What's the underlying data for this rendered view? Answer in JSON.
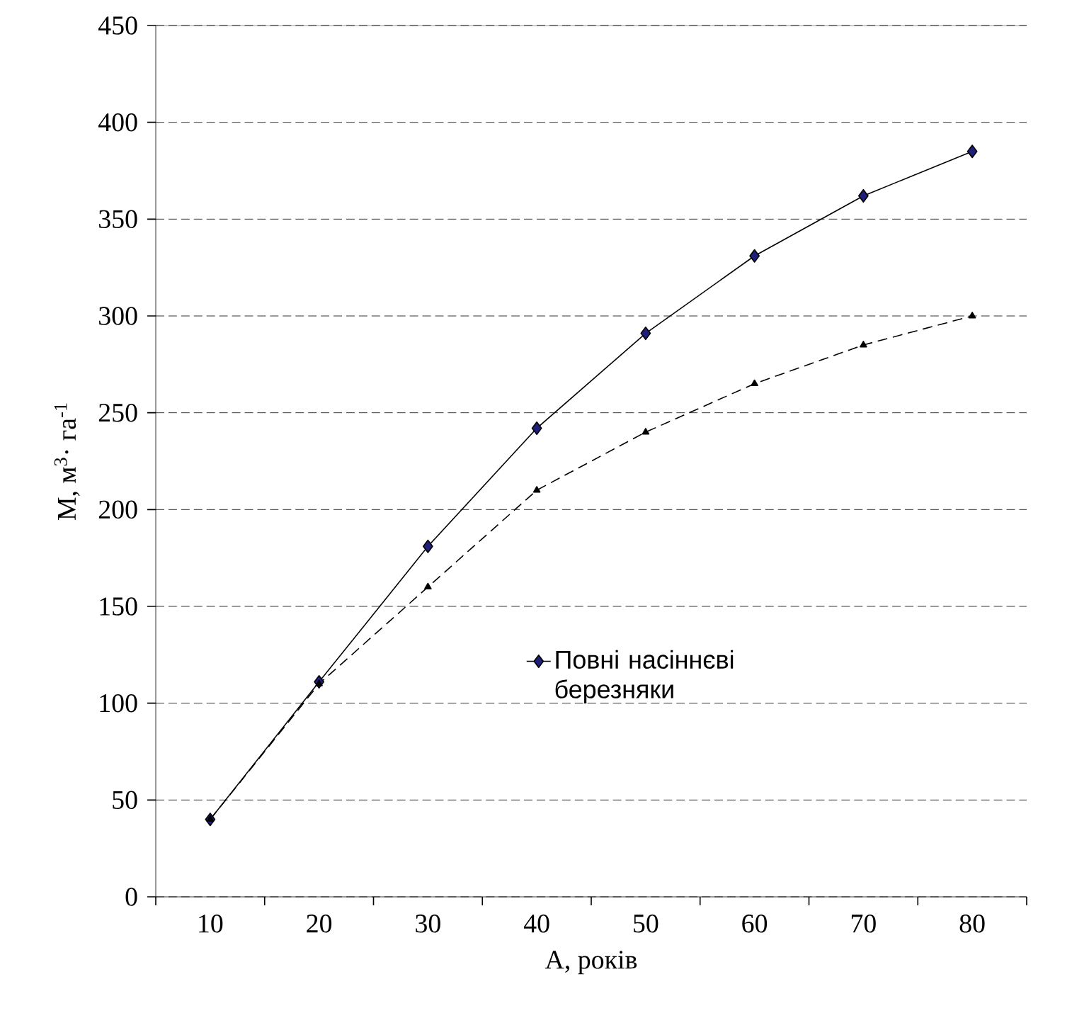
{
  "chart_data": {
    "type": "line",
    "xlabel": "А, років",
    "ylabel": "М, м$^{3}$· га$^{-1}$",
    "categories": [
      "10",
      "20",
      "30",
      "40",
      "50",
      "60",
      "70",
      "80"
    ],
    "series": [
      {
        "name": "Повні насіннєві березняки",
        "color": "#1f1f7a",
        "marker": "diamond",
        "line_style": "solid",
        "values": [
          40,
          111,
          181,
          242,
          291,
          331,
          362,
          385
        ]
      },
      {
        "color": "#000000",
        "marker": "triangle",
        "line_style": "dashed",
        "values": [
          40,
          110,
          160,
          210,
          240,
          265,
          285,
          300
        ]
      }
    ],
    "ylim": [
      0,
      450
    ],
    "yticks": [
      0,
      50,
      100,
      150,
      200,
      250,
      300,
      350,
      400,
      450
    ],
    "grid": "y",
    "legend": "bottom right"
  }
}
